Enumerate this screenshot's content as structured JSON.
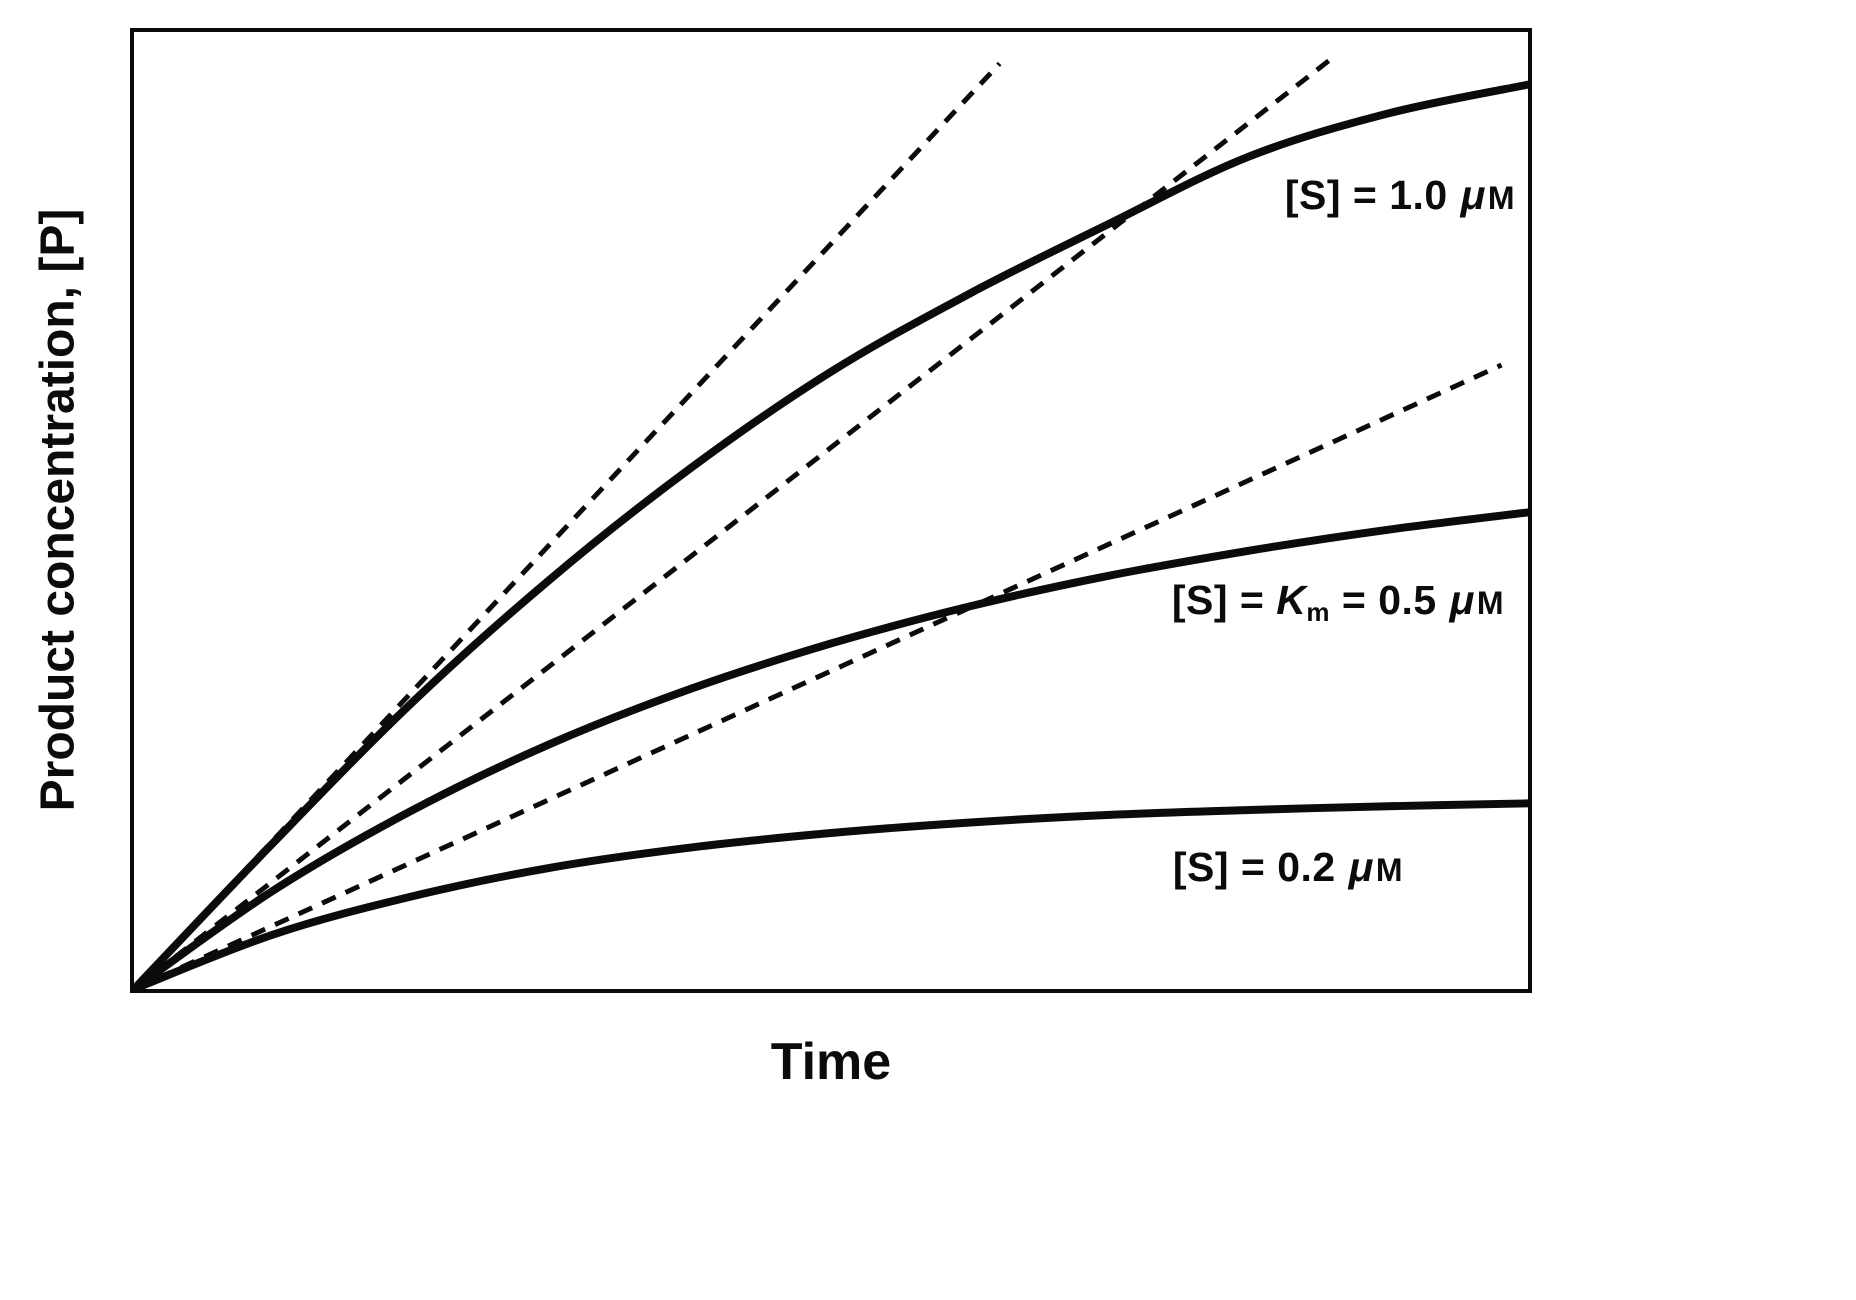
{
  "figure": {
    "x_axis_label": "Time",
    "y_axis_label": "Product concentration, [P]"
  },
  "colors": {
    "ink": "#0b0b0b",
    "background": "#ffffff"
  },
  "labels": {
    "s10": {
      "pre": "[S] = 1.0 ",
      "mu": "μ",
      "unit": "M"
    },
    "s05": {
      "pre": "[S] = ",
      "kvar": "K",
      "ksub": "m",
      "mid": " = 0.5 ",
      "mu": "μ",
      "unit": "M"
    },
    "s02": {
      "pre": "[S] = 0.2 ",
      "mu": "μ",
      "unit": "M"
    }
  },
  "chart_data": {
    "type": "line",
    "title": "",
    "xlabel": "Time",
    "ylabel": "Product concentration, [P]",
    "x_range": [
      0,
      1
    ],
    "y_range": [
      0,
      1
    ],
    "grid": false,
    "axis_ticks": "none",
    "legend": "inline-curve-labels",
    "x": [
      0,
      0.1,
      0.2,
      0.3,
      0.4,
      0.5,
      0.6,
      0.7,
      0.8,
      0.9,
      1.0
    ],
    "series": [
      {
        "name": "[S] = 1.0 μM",
        "line": "solid",
        "values": [
          0,
          0.153,
          0.3,
          0.43,
          0.545,
          0.645,
          0.727,
          0.8,
          0.87,
          0.915,
          0.945
        ]
      },
      {
        "name": "[S] = Km = 0.5 μM",
        "line": "solid",
        "values": [
          0,
          0.103,
          0.187,
          0.257,
          0.314,
          0.361,
          0.4,
          0.432,
          0.458,
          0.48,
          0.498
        ]
      },
      {
        "name": "[S] = 0.2 μM",
        "line": "solid",
        "values": [
          0,
          0.057,
          0.097,
          0.127,
          0.148,
          0.163,
          0.174,
          0.182,
          0.187,
          0.191,
          0.194
        ]
      }
    ],
    "initial_rate_tangents": [
      {
        "for": "[S] = 1.0 μM",
        "line": "dashed",
        "slope": 1.56,
        "from": [
          0,
          0
        ],
        "to": [
          0.621,
          0.967
        ]
      },
      {
        "for": "[S] = Km = 0.5 μM",
        "line": "dashed",
        "slope": 1.13,
        "from": [
          0,
          0
        ],
        "to": [
          0.858,
          0.971
        ]
      },
      {
        "for": "[S] = 0.2 μM",
        "line": "dashed",
        "slope": 0.66,
        "from": [
          0,
          0
        ],
        "to": [
          0.981,
          0.652
        ]
      }
    ],
    "annotations": [
      {
        "text": "[S] = 1.0 μM",
        "x_right": 0.991,
        "y_top": 0.855
      },
      {
        "text": "[S] = Km = 0.5 μM",
        "x_right": 0.983,
        "y_top": 0.435
      },
      {
        "text": "[S] = 0.2 μM",
        "x_right": 0.911,
        "y_top": 0.159
      }
    ]
  }
}
